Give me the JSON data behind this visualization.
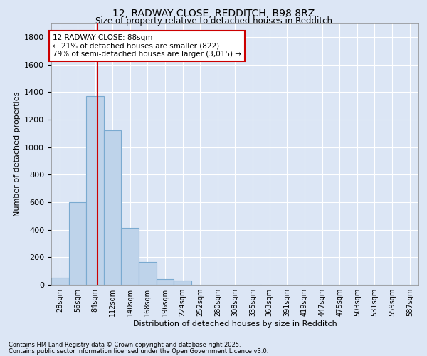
{
  "title1": "12, RADWAY CLOSE, REDDITCH, B98 8RZ",
  "title2": "Size of property relative to detached houses in Redditch",
  "xlabel": "Distribution of detached houses by size in Redditch",
  "ylabel": "Number of detached properties",
  "bar_color": "#bed3ea",
  "bar_edge_color": "#7aaad0",
  "background_color": "#dce6f5",
  "grid_color": "#ffffff",
  "vline_color": "#cc0000",
  "vline_x": 88,
  "annotation_text": "12 RADWAY CLOSE: 88sqm\n← 21% of detached houses are smaller (822)\n79% of semi-detached houses are larger (3,015) →",
  "annotation_box_color": "#ffffff",
  "annotation_box_edge": "#cc0000",
  "categories": [
    "28sqm",
    "56sqm",
    "84sqm",
    "112sqm",
    "140sqm",
    "168sqm",
    "196sqm",
    "224sqm",
    "252sqm",
    "280sqm",
    "308sqm",
    "335sqm",
    "363sqm",
    "391sqm",
    "419sqm",
    "447sqm",
    "475sqm",
    "503sqm",
    "531sqm",
    "559sqm",
    "587sqm"
  ],
  "bin_edges": [
    14,
    42,
    70,
    98,
    126,
    154,
    182,
    210,
    238,
    266,
    294,
    322,
    349,
    377,
    405,
    433,
    461,
    489,
    517,
    545,
    573,
    601
  ],
  "values": [
    50,
    600,
    1370,
    1120,
    415,
    165,
    40,
    30,
    0,
    0,
    0,
    0,
    0,
    0,
    0,
    0,
    0,
    0,
    0,
    0,
    0
  ],
  "ylim": [
    0,
    1900
  ],
  "yticks": [
    0,
    200,
    400,
    600,
    800,
    1000,
    1200,
    1400,
    1600,
    1800
  ],
  "footer1": "Contains HM Land Registry data © Crown copyright and database right 2025.",
  "footer2": "Contains public sector information licensed under the Open Government Licence v3.0."
}
